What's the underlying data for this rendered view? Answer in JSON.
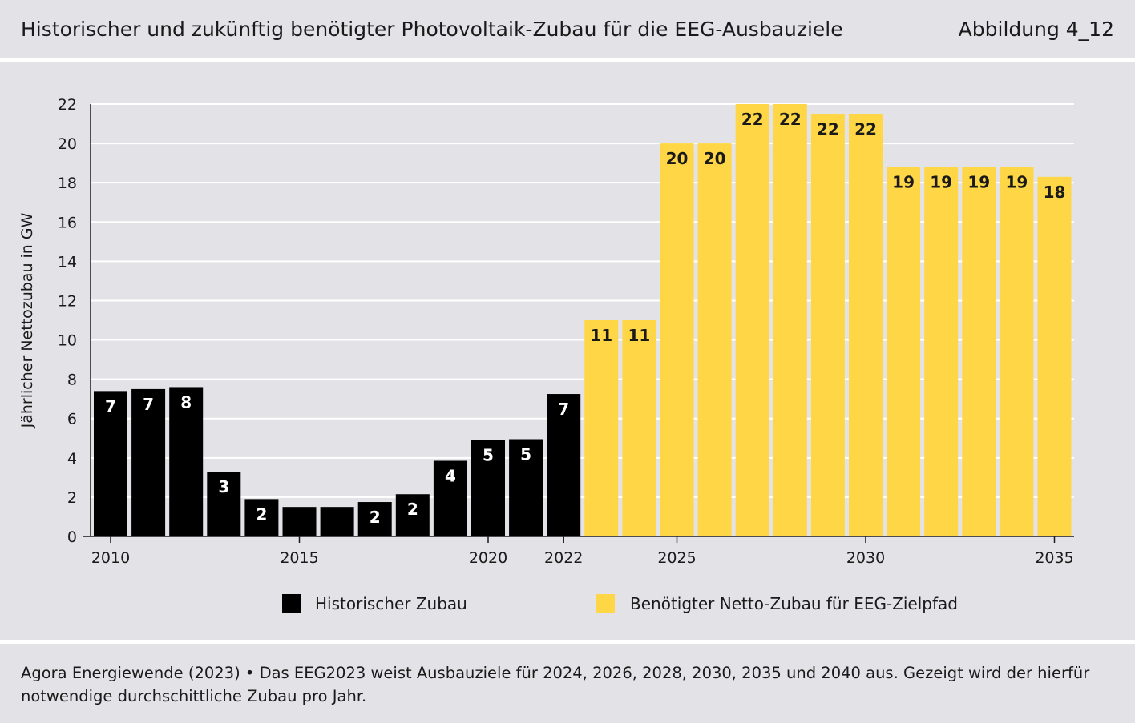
{
  "header": {
    "title": "Historischer und zukünftig benötigter Photovoltaik-Zubau für die EEG-Ausbauziele",
    "figure_id": "Abbildung 4_12"
  },
  "footer": {
    "line1": "Agora Energiewende (2023) • Das EEG2023 weist Ausbauziele für 2024, 2026, 2028, 2030, 2035 und 2040 aus. Gezeigt wird der hierfür",
    "line2": "notwendige durchschittliche Zubau pro Jahr."
  },
  "colors": {
    "historical": "#000000",
    "required": "#fed646",
    "gridline": "#ffffff",
    "background": "#e3e3e7"
  },
  "chart_data": {
    "type": "bar",
    "title": "Historischer und zukünftig benötigter Photovoltaik-Zubau für die EEG-Ausbauziele",
    "xlabel": "",
    "ylabel": "Jährlicher Nettozubau in GW",
    "ylim": [
      0,
      22
    ],
    "yticks": [
      0,
      2,
      4,
      6,
      8,
      10,
      12,
      14,
      16,
      18,
      20,
      22
    ],
    "grid": true,
    "legend_position": "bottom",
    "categories": [
      2010,
      2011,
      2012,
      2013,
      2014,
      2015,
      2016,
      2017,
      2018,
      2019,
      2020,
      2021,
      2022,
      2023,
      2024,
      2025,
      2026,
      2027,
      2028,
      2029,
      2030,
      2031,
      2032,
      2033,
      2034,
      2035
    ],
    "xtick_labels": [
      "2010",
      "2015",
      "2020",
      "2022",
      "2025",
      "2030",
      "2035"
    ],
    "series": [
      {
        "name": "Historischer Zubau",
        "color": "#000000",
        "label_color": "#ffffff",
        "x": [
          2010,
          2011,
          2012,
          2013,
          2014,
          2015,
          2016,
          2017,
          2018,
          2019,
          2020,
          2021,
          2022
        ],
        "values": [
          7.4,
          7.5,
          7.6,
          3.3,
          1.9,
          1.5,
          1.5,
          1.75,
          2.15,
          3.85,
          4.9,
          4.95,
          7.25
        ],
        "labels": [
          "7",
          "7",
          "8",
          "3",
          "2",
          "",
          "",
          "2",
          "2",
          "4",
          "5",
          "5",
          "7"
        ]
      },
      {
        "name": "Benötigter Netto-Zubau für EEG-Zielpfad",
        "color": "#fed646",
        "label_color": "#1a1a1a",
        "x": [
          2023,
          2024,
          2025,
          2026,
          2027,
          2028,
          2029,
          2030,
          2031,
          2032,
          2033,
          2034,
          2035
        ],
        "values": [
          11,
          11,
          20,
          20,
          22,
          22,
          21.5,
          21.5,
          18.8,
          18.8,
          18.8,
          18.8,
          18.3
        ],
        "labels": [
          "11",
          "11",
          "20",
          "20",
          "22",
          "22",
          "22",
          "22",
          "19",
          "19",
          "19",
          "19",
          "18"
        ]
      }
    ]
  }
}
